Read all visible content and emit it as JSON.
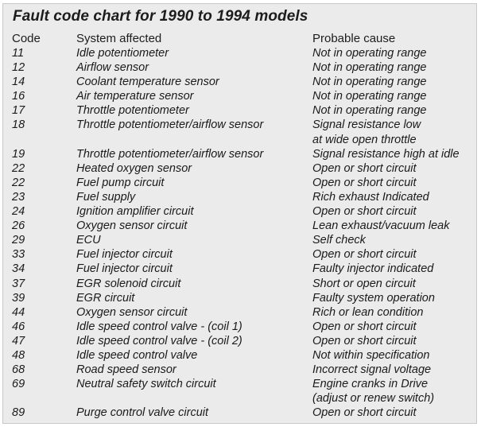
{
  "title": "Fault code chart for 1990 to 1994 models",
  "headers": {
    "code": "Code",
    "system": "System affected",
    "cause": "Probable cause"
  },
  "rows": [
    {
      "code": "11",
      "system": "Idle potentiometer",
      "cause": "Not in operating range"
    },
    {
      "code": "12",
      "system": "Airflow sensor",
      "cause": "Not in operating range"
    },
    {
      "code": "14",
      "system": "Coolant temperature sensor",
      "cause": "Not in operating range"
    },
    {
      "code": "16",
      "system": "Air temperature sensor",
      "cause": "Not in operating range"
    },
    {
      "code": "17",
      "system": "Throttle potentiometer",
      "cause": "Not in operating range"
    },
    {
      "code": "18",
      "system": "Throttle potentiometer/airflow sensor",
      "cause": "Signal resistance low\nat wide open throttle"
    },
    {
      "code": "19",
      "system": "Throttle potentiometer/airflow sensor",
      "cause": "Signal resistance high at idle"
    },
    {
      "code": "22",
      "system": "Heated oxygen sensor",
      "cause": "Open or short circuit"
    },
    {
      "code": "22",
      "system": "Fuel pump circuit",
      "cause": "Open or short circuit"
    },
    {
      "code": "23",
      "system": "Fuel supply",
      "cause": "Rich exhaust Indicated"
    },
    {
      "code": "24",
      "system": "Ignition amplifier circuit",
      "cause": "Open or short circuit"
    },
    {
      "code": "26",
      "system": "Oxygen sensor circuit",
      "cause": "Lean exhaust/vacuum leak"
    },
    {
      "code": "29",
      "system": "ECU",
      "cause": "Self check"
    },
    {
      "code": "33",
      "system": "Fuel injector circuit",
      "cause": "Open or short circuit"
    },
    {
      "code": "34",
      "system": "Fuel injector circuit",
      "cause": "Faulty injector indicated"
    },
    {
      "code": "37",
      "system": "EGR solenoid circuit",
      "cause": "Short or open circuit"
    },
    {
      "code": "39",
      "system": "EGR circuit",
      "cause": "Faulty system operation"
    },
    {
      "code": "44",
      "system": "Oxygen sensor circuit",
      "cause": "Rich or lean condition"
    },
    {
      "code": "46",
      "system": "Idle speed control valve - (coil 1)",
      "cause": "Open or short circuit"
    },
    {
      "code": "47",
      "system": "Idle speed control valve - (coil 2)",
      "cause": "Open or short circuit"
    },
    {
      "code": "48",
      "system": "Idle speed control valve",
      "cause": "Not within specification"
    },
    {
      "code": "68",
      "system": "Road speed sensor",
      "cause": "Incorrect signal voltage"
    },
    {
      "code": "69",
      "system": "Neutral safety switch circuit",
      "cause": "Engine cranks in Drive\n(adjust or renew switch)"
    },
    {
      "code": "89",
      "system": "Purge control valve circuit",
      "cause": "Open or short circuit"
    }
  ]
}
